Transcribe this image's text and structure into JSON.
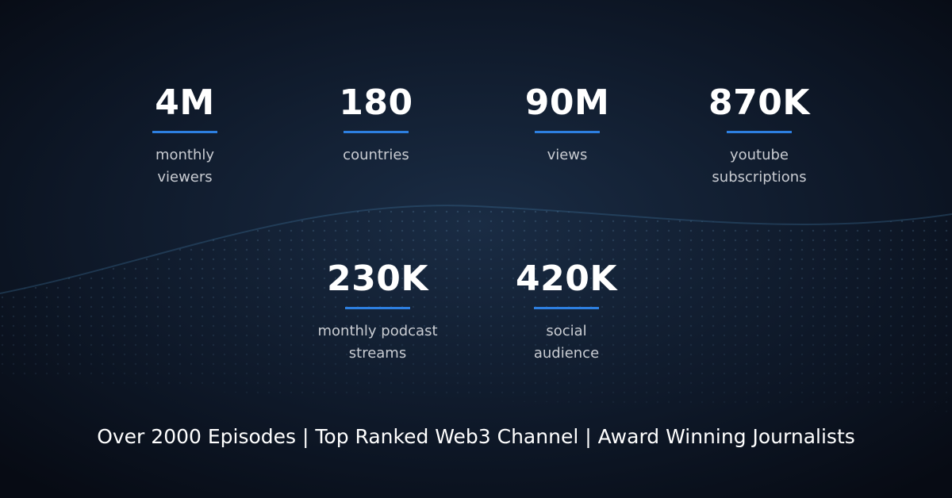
{
  "stats": [
    {
      "value": "4M",
      "label_lines": [
        "monthly",
        "viewers"
      ]
    },
    {
      "value": "180",
      "label_lines": [
        "countries"
      ]
    },
    {
      "value": "90M",
      "label_lines": [
        "views"
      ]
    },
    {
      "value": "870K",
      "label_lines": [
        "youtube",
        "subscriptions"
      ]
    },
    {
      "value": "230K",
      "label_lines": [
        "monthly podcast",
        "streams"
      ]
    },
    {
      "value": "420K",
      "label_lines": [
        "social",
        "audience"
      ]
    }
  ],
  "footer": "Over 2000 Episodes | Top Ranked Web3 Channel | Award Winning Journalists"
}
